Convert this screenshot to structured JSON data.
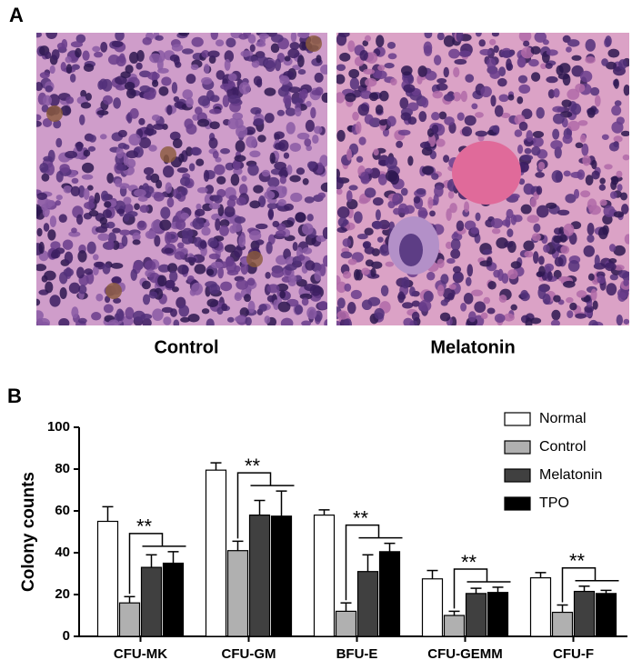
{
  "figure_label_a": "A",
  "images": [
    {
      "caption": "Control"
    },
    {
      "caption": "Melatonin"
    }
  ],
  "figure_label_b": "B",
  "chart_data": {
    "type": "bar",
    "ylabel": "Colony counts",
    "categories": [
      "CFU-MK",
      "CFU-GM",
      "BFU-E",
      "CFU-GEMM",
      "CFU-F"
    ],
    "series": [
      {
        "name": "Normal",
        "color": "#ffffff",
        "values": [
          55,
          79.5,
          58,
          27.5,
          28
        ],
        "errors": [
          7,
          3.5,
          2.5,
          4,
          2.5
        ]
      },
      {
        "name": "Control",
        "color": "#b0b0b0",
        "values": [
          16,
          41,
          12,
          10,
          11.5
        ],
        "errors": [
          3,
          4.5,
          4,
          2,
          3.5
        ]
      },
      {
        "name": "Melatonin",
        "color": "#404040",
        "values": [
          33,
          58,
          31,
          20.5,
          21.5
        ],
        "errors": [
          6,
          7,
          8,
          2.5,
          2.5
        ]
      },
      {
        "name": "TPO",
        "color": "#000000",
        "values": [
          35,
          57.5,
          40.5,
          21,
          20.5
        ],
        "errors": [
          5.5,
          12,
          4,
          2.5,
          1.5
        ]
      }
    ],
    "annotations": [
      "**",
      "**",
      "**",
      "**",
      "**"
    ],
    "ylim": [
      0,
      100
    ],
    "yticks": [
      0,
      20,
      40,
      60,
      80,
      100
    ],
    "grid": false,
    "legend": "upper right"
  }
}
